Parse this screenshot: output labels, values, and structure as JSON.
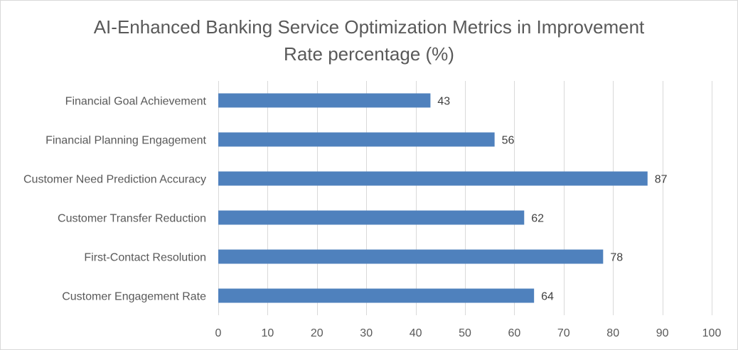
{
  "chart_data": {
    "type": "bar",
    "orientation": "horizontal",
    "title_lines": [
      "AI-Enhanced Banking Service Optimization Metrics in Improvement",
      "Rate percentage (%)"
    ],
    "categories": [
      "Financial Goal Achievement",
      "Financial Planning Engagement",
      "Customer Need Prediction Accuracy",
      "Customer Transfer Reduction",
      "First-Contact Resolution",
      "Customer Engagement Rate"
    ],
    "values": [
      43,
      56,
      87,
      62,
      78,
      64
    ],
    "xlim": [
      0,
      100
    ],
    "xticks": [
      0,
      10,
      20,
      30,
      40,
      50,
      60,
      70,
      80,
      90,
      100
    ],
    "grid": true,
    "data_labels": true,
    "bar_color": "#4f81bd"
  }
}
